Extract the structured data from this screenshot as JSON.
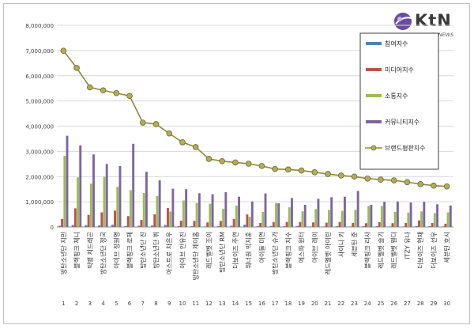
{
  "brand": {
    "name": "KtN",
    "tagline": "K trendy NEWS"
  },
  "chart_data": {
    "type": "bar",
    "title": "",
    "xlabel": "",
    "ylabel": "",
    "ylim": [
      0,
      8000000
    ],
    "yticks": [
      "0",
      "1,000,000",
      "2,000,000",
      "3,000,000",
      "4,000,000",
      "5,000,000",
      "6,000,000",
      "7,000,000",
      "8,000,000"
    ],
    "grid": "horizontal",
    "legend_position": "top-right",
    "categories": [
      "방탄소년단 지민",
      "블랙핑크 제니",
      "빅뱅 지드래곤",
      "방탄소년단 정국",
      "아이브 장원영",
      "블랙핑크 로제",
      "방탄소년단 진",
      "방탄소년단 뷔",
      "아스트로 차은우",
      "아이브 안유진",
      "방탄소년단 제이홉",
      "레드벨벳 조이",
      "방탄소년단 RM",
      "더보이즈 주연",
      "워너원 박지훈",
      "아이들 미연",
      "방탄소년단 슈가",
      "블랙핑크 지수",
      "에스파 윈터",
      "아이브 레이",
      "레드벨벳 아이린",
      "샤이니 키",
      "세븐틴 준",
      "블랙핑크 리사",
      "레드벨벳 슬기",
      "레드벨벳 웬디",
      "ITZY 유나",
      "더보이즈 현재",
      "더보이즈 선우",
      "세븐틴 호시"
    ],
    "ranks": [
      "1",
      "2",
      "3",
      "4",
      "5",
      "6",
      "7",
      "8",
      "9",
      "10",
      "11",
      "12",
      "13",
      "14",
      "15",
      "16",
      "17",
      "18",
      "19",
      "20",
      "21",
      "22",
      "23",
      "24",
      "25",
      "26",
      "27",
      "28",
      "29",
      "30"
    ],
    "series": [
      {
        "name": "참여지수",
        "color": "#4f81bd",
        "kind": "bar",
        "values": [
          50000,
          80000,
          70000,
          60000,
          90000,
          40000,
          50000,
          60000,
          80000,
          40000,
          30000,
          20000,
          30000,
          50000,
          90000,
          30000,
          40000,
          30000,
          40000,
          20000,
          20000,
          30000,
          20000,
          30000,
          30000,
          20000,
          20000,
          40000,
          30000,
          20000
        ]
      },
      {
        "name": "미디어지수",
        "color": "#c0504d",
        "kind": "bar",
        "values": [
          320000,
          740000,
          480000,
          580000,
          650000,
          430000,
          280000,
          500000,
          750000,
          250000,
          240000,
          180000,
          240000,
          320000,
          500000,
          160000,
          200000,
          200000,
          200000,
          180000,
          170000,
          200000,
          160000,
          150000,
          190000,
          150000,
          160000,
          260000,
          160000,
          130000
        ]
      },
      {
        "name": "소통지수",
        "color": "#9bbb59",
        "kind": "bar",
        "values": [
          2820000,
          1970000,
          1720000,
          1990000,
          1590000,
          1460000,
          1350000,
          1230000,
          610000,
          1050000,
          950000,
          920000,
          720000,
          850000,
          410000,
          600000,
          950000,
          780000,
          620000,
          710000,
          680000,
          640000,
          680000,
          830000,
          830000,
          600000,
          570000,
          620000,
          550000,
          580000
        ]
      },
      {
        "name": "커뮤니티지수",
        "color": "#8064a2",
        "kind": "bar",
        "values": [
          3620000,
          3240000,
          2880000,
          2500000,
          2420000,
          3300000,
          2190000,
          1850000,
          1520000,
          1500000,
          1340000,
          1300000,
          1380000,
          1200000,
          1010000,
          1330000,
          940000,
          1150000,
          880000,
          1120000,
          1180000,
          1200000,
          1430000,
          880000,
          1000000,
          1010000,
          970000,
          1000000,
          900000,
          850000
        ]
      },
      {
        "name": "브랜드평판지수",
        "color": "#8c8a3c",
        "kind": "line",
        "values": [
          6990000,
          6310000,
          5540000,
          5420000,
          5310000,
          5200000,
          4140000,
          4080000,
          3710000,
          3360000,
          3170000,
          2700000,
          2610000,
          2560000,
          2510000,
          2420000,
          2300000,
          2280000,
          2240000,
          2170000,
          2100000,
          2040000,
          2000000,
          1920000,
          1880000,
          1850000,
          1780000,
          1700000,
          1640000,
          1610000
        ]
      }
    ]
  }
}
